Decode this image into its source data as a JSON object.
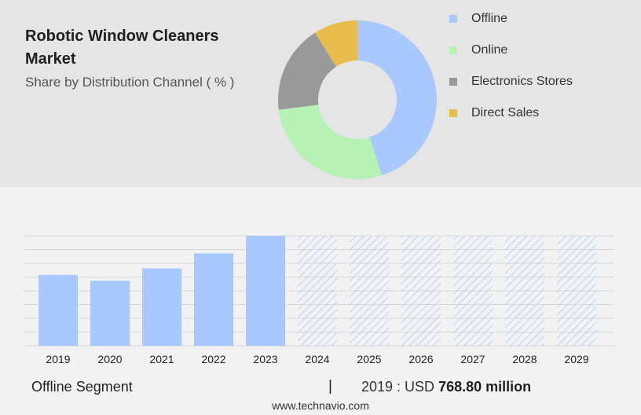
{
  "header": {
    "title": "Robotic Window Cleaners Market",
    "subtitle": "Share by Distribution Channel ( % )"
  },
  "colors": {
    "offline": "#a8c8ff",
    "online": "#b6f2b6",
    "electronics_stores": "#999999",
    "direct_sales": "#e8bb4d",
    "bar": "#a8c8ff",
    "forecast_hatch": "#a8c8ff"
  },
  "chart_data": [
    {
      "type": "pie",
      "subtype": "donut",
      "series": [
        {
          "name": "Offline",
          "value": 45
        },
        {
          "name": "Online",
          "value": 28
        },
        {
          "name": "Electronics Stores",
          "value": 18
        },
        {
          "name": "Direct Sales",
          "value": 9
        }
      ],
      "legend_position": "right"
    },
    {
      "type": "bar",
      "categories": [
        "2019",
        "2020",
        "2021",
        "2022",
        "2023",
        "2024",
        "2025",
        "2026",
        "2027",
        "2028",
        "2029"
      ],
      "values": [
        768.8,
        705,
        839,
        1002,
        1192,
        null,
        null,
        null,
        null,
        null,
        null
      ],
      "forecast_categories": [
        "2024",
        "2025",
        "2026",
        "2027",
        "2028",
        "2029"
      ],
      "ylim": [
        0,
        1192
      ],
      "grid": true,
      "xlabel": "",
      "ylabel": ""
    }
  ],
  "footer": {
    "segment": "Offline Segment",
    "separator": "|",
    "year_prefix": "2019 : USD",
    "value_text": "768.80 million",
    "site": "www.technavio.com"
  }
}
